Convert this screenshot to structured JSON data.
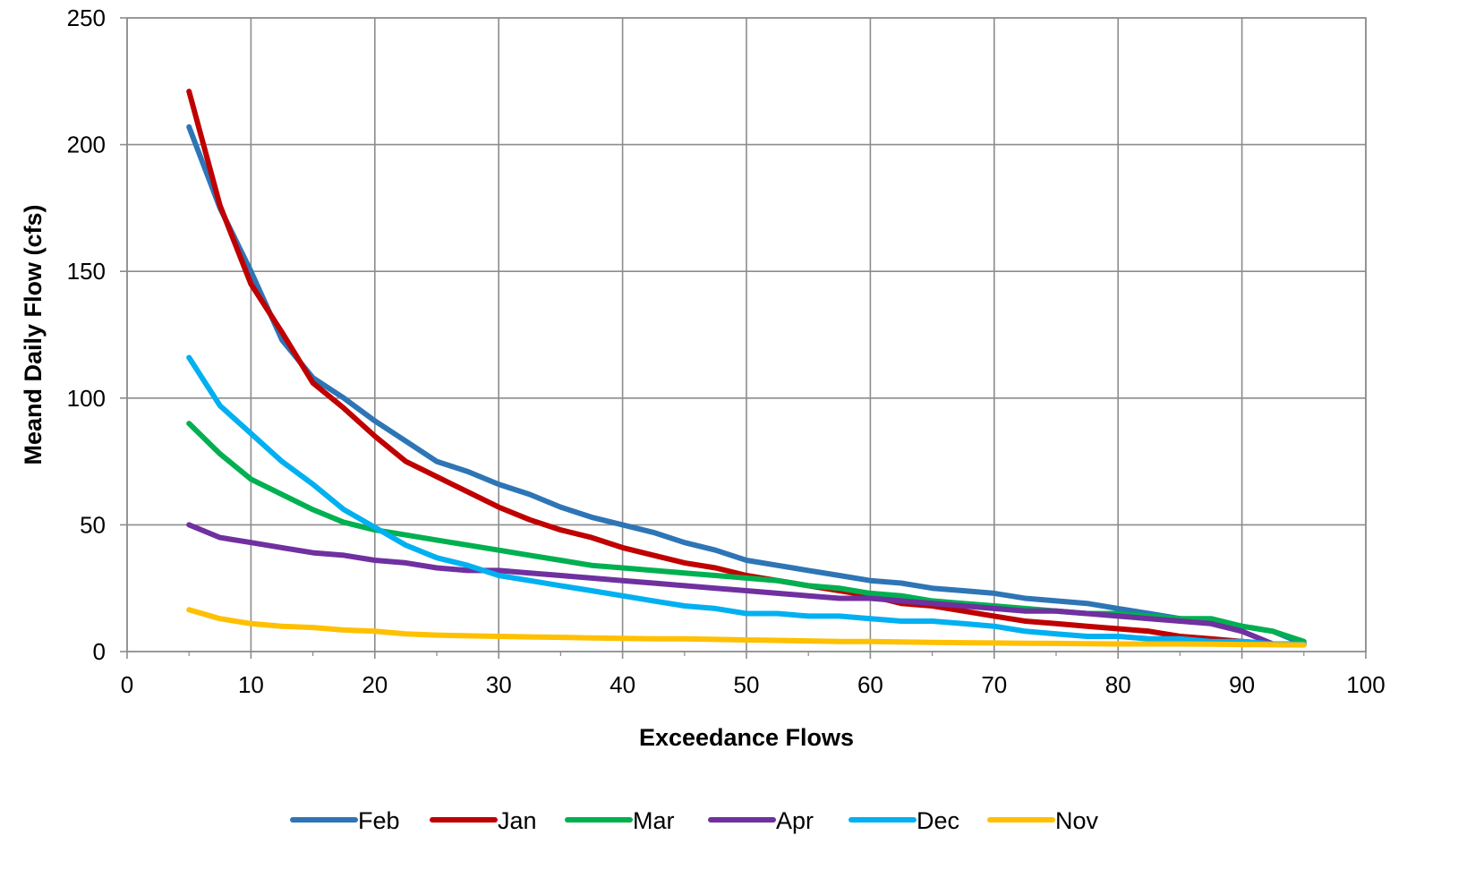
{
  "chart_data": {
    "type": "line",
    "xlabel": "Exceedance Flows",
    "ylabel": "Meand Daily Flow (cfs)",
    "xlim": [
      0,
      100
    ],
    "ylim": [
      0,
      250
    ],
    "x_ticks": [
      "0",
      "10",
      "20",
      "30",
      "40",
      "50",
      "60",
      "70",
      "80",
      "90",
      "100"
    ],
    "y_ticks": [
      "0",
      "50",
      "100",
      "150",
      "200",
      "250"
    ],
    "grid": true,
    "legend_position": "bottom",
    "x": [
      5,
      7.5,
      10,
      12.5,
      15,
      17.5,
      20,
      22.5,
      25,
      27.5,
      30,
      32.5,
      35,
      37.5,
      40,
      42.5,
      45,
      47.5,
      50,
      52.5,
      55,
      57.5,
      60,
      62.5,
      65,
      67.5,
      70,
      72.5,
      75,
      77.5,
      80,
      82.5,
      85,
      87.5,
      90,
      92.5,
      95
    ],
    "series": [
      {
        "name": "Feb",
        "color": "#2e75b6",
        "values": [
          207,
          175,
          150,
          123,
          108,
          100,
          91,
          83,
          75,
          71,
          66,
          62,
          57,
          53,
          50,
          47,
          43,
          40,
          36,
          34,
          32,
          30,
          28,
          27,
          25,
          24,
          23,
          21,
          20,
          19,
          17,
          15,
          13,
          12,
          10,
          8,
          3
        ]
      },
      {
        "name": "Jan",
        "color": "#c00000",
        "values": [
          221,
          176,
          145,
          126,
          106,
          96,
          85,
          75,
          69,
          63,
          57,
          52,
          48,
          45,
          41,
          38,
          35,
          33,
          30,
          28,
          26,
          24,
          22,
          19,
          18,
          16,
          14,
          12,
          11,
          10,
          9,
          8,
          6,
          5,
          4,
          3,
          3
        ]
      },
      {
        "name": "Mar",
        "color": "#00b050",
        "values": [
          90,
          78,
          68,
          62,
          56,
          51,
          48,
          46,
          44,
          42,
          40,
          38,
          36,
          34,
          33,
          32,
          31,
          30,
          29,
          28,
          26,
          25,
          23,
          22,
          20,
          19,
          18,
          17,
          16,
          15,
          15,
          14,
          13,
          13,
          10,
          8,
          4
        ]
      },
      {
        "name": "Apr",
        "color": "#7030a0",
        "values": [
          50,
          45,
          43,
          41,
          39,
          38,
          36,
          35,
          33,
          32,
          32,
          31,
          30,
          29,
          28,
          27,
          26,
          25,
          24,
          23,
          22,
          21,
          21,
          20,
          19,
          18,
          17,
          16,
          16,
          15,
          14,
          13,
          12,
          11,
          8,
          3,
          3
        ]
      },
      {
        "name": "Dec",
        "color": "#00b0f0",
        "values": [
          116,
          97,
          86,
          75,
          66,
          56,
          49,
          42,
          37,
          34,
          30,
          28,
          26,
          24,
          22,
          20,
          18,
          17,
          15,
          15,
          14,
          14,
          13,
          12,
          12,
          11,
          10,
          8,
          7,
          6,
          6,
          5,
          5,
          4,
          4,
          3,
          3
        ]
      },
      {
        "name": "Nov",
        "color": "#ffc000",
        "values": [
          16.5,
          13,
          11,
          10,
          9.5,
          8.5,
          8,
          7,
          6.5,
          6.2,
          6,
          5.8,
          5.6,
          5.4,
          5.2,
          5,
          5,
          4.8,
          4.6,
          4.4,
          4.2,
          4,
          4,
          3.8,
          3.6,
          3.5,
          3.4,
          3.3,
          3.2,
          3.1,
          3,
          3,
          3,
          2.9,
          2.8,
          2.7,
          2.6
        ]
      }
    ]
  }
}
